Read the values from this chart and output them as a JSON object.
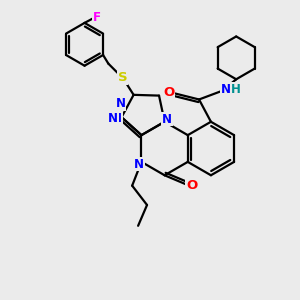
{
  "bg_color": "#ebebeb",
  "atom_colors": {
    "N": "#0000ff",
    "O": "#ff0000",
    "S": "#cccc00",
    "F": "#ff00ff",
    "H": "#009090",
    "C": "#000000"
  },
  "bond_color": "#000000",
  "bond_width": 1.6,
  "font_size_atom": 8.5,
  "title": ""
}
